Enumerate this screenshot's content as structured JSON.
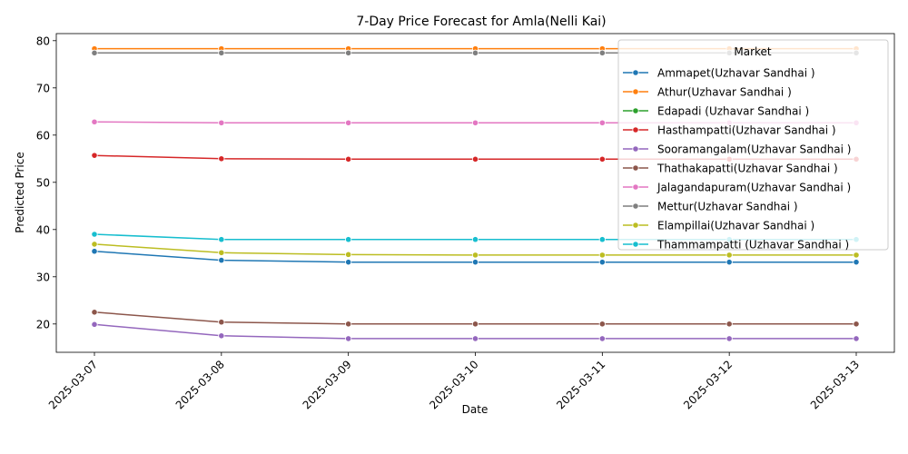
{
  "chart_data": {
    "type": "line",
    "title": "7-Day Price Forecast for Amla(Nelli Kai)",
    "xlabel": "Date",
    "ylabel": "Predicted Price",
    "x": [
      "2025-03-07",
      "2025-03-08",
      "2025-03-09",
      "2025-03-10",
      "2025-03-11",
      "2025-03-12",
      "2025-03-13"
    ],
    "ylim": [
      14,
      81.5
    ],
    "yticks": [
      20,
      30,
      40,
      50,
      60,
      70,
      80
    ],
    "grid": false,
    "legend": {
      "title": "Market",
      "placement": "upper-right"
    },
    "series": [
      {
        "name": "Ammapet(Uzhavar Sandhai )",
        "color": "#1f77b4",
        "values": [
          35.4,
          33.5,
          33.1,
          33.1,
          33.1,
          33.1,
          33.1
        ]
      },
      {
        "name": "Athur(Uzhavar Sandhai )",
        "color": "#ff7f0e",
        "values": [
          78.3,
          78.3,
          78.3,
          78.3,
          78.3,
          78.3,
          78.3
        ]
      },
      {
        "name": "Edapadi (Uzhavar Sandhai )",
        "color": "#2ca02c",
        "values": [
          77.4,
          77.4,
          77.4,
          77.4,
          77.4,
          77.4,
          77.4
        ]
      },
      {
        "name": "Hasthampatti(Uzhavar Sandhai )",
        "color": "#d62728",
        "values": [
          55.7,
          55.0,
          54.9,
          54.9,
          54.9,
          54.9,
          54.9
        ]
      },
      {
        "name": "Sooramangalam(Uzhavar Sandhai )",
        "color": "#9467bd",
        "values": [
          19.9,
          17.5,
          16.9,
          16.9,
          16.9,
          16.9,
          16.9
        ]
      },
      {
        "name": "Thathakapatti(Uzhavar Sandhai )",
        "color": "#8c564b",
        "values": [
          22.5,
          20.4,
          20.0,
          20.0,
          20.0,
          20.0,
          20.0
        ]
      },
      {
        "name": "Jalagandapuram(Uzhavar Sandhai )",
        "color": "#e377c2",
        "values": [
          62.8,
          62.6,
          62.6,
          62.6,
          62.6,
          62.6,
          62.6
        ]
      },
      {
        "name": "Mettur(Uzhavar Sandhai )",
        "color": "#7f7f7f",
        "values": [
          77.4,
          77.4,
          77.4,
          77.4,
          77.4,
          77.4,
          77.4
        ]
      },
      {
        "name": "Elampillai(Uzhavar Sandhai )",
        "color": "#bcbd22",
        "values": [
          36.9,
          35.1,
          34.7,
          34.6,
          34.6,
          34.6,
          34.6
        ]
      },
      {
        "name": "Thammampatti (Uzhavar Sandhai )",
        "color": "#17becf",
        "values": [
          39.0,
          37.9,
          37.9,
          37.9,
          37.9,
          37.9,
          37.9
        ]
      }
    ]
  }
}
